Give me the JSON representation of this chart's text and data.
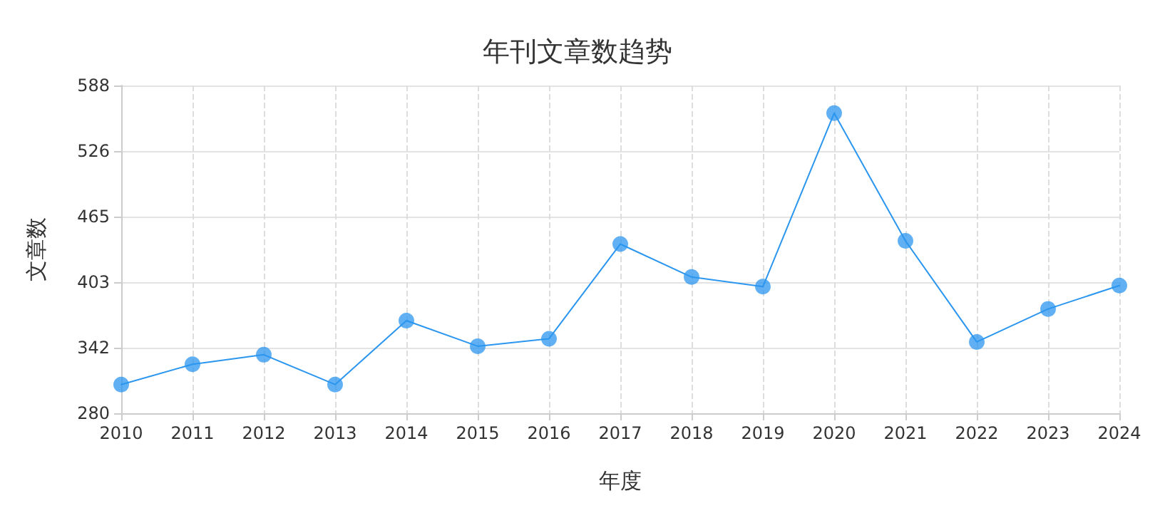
{
  "chart_data": {
    "type": "line",
    "title": "年刊文章数趋势",
    "xlabel": "年度",
    "ylabel": "文章数",
    "categories": [
      "2010",
      "2011",
      "2012",
      "2013",
      "2014",
      "2015",
      "2016",
      "2017",
      "2018",
      "2019",
      "2020",
      "2021",
      "2022",
      "2023",
      "2024"
    ],
    "series": [
      {
        "color": "#2b96ef",
        "values": [
          307,
          326,
          335,
          307,
          367,
          343,
          350,
          439,
          408,
          399,
          562,
          442,
          347,
          378,
          400
        ]
      }
    ],
    "ylim": [
      280,
      588
    ],
    "yticks": [
      280,
      {
        "value": 341.6,
        "label": "342"
      },
      {
        "value": 403.2,
        "label": "403"
      },
      {
        "value": 464.8,
        "label": "465"
      },
      {
        "value": 526.4,
        "label": "526"
      },
      588
    ],
    "grid": true,
    "marker": "circle",
    "line_style": "solid"
  }
}
